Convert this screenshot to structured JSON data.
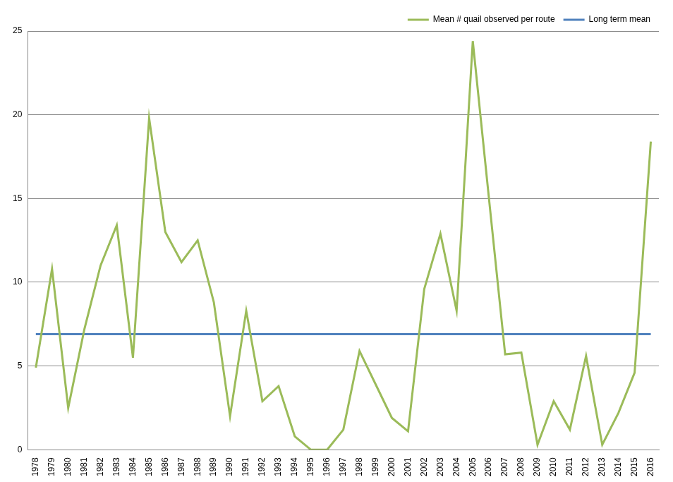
{
  "chart_data": {
    "type": "line",
    "categories": [
      "1978",
      "1979",
      "1980",
      "1981",
      "1982",
      "1983",
      "1984",
      "1985",
      "1986",
      "1987",
      "1988",
      "1989",
      "1990",
      "1991",
      "1992",
      "1993",
      "1994",
      "1995",
      "1996",
      "1997",
      "1998",
      "1999",
      "2000",
      "2001",
      "2002",
      "2003",
      "2004",
      "2005",
      "2006",
      "2007",
      "2008",
      "2009",
      "2010",
      "2011",
      "2012",
      "2013",
      "2014",
      "2015",
      "2016"
    ],
    "series": [
      {
        "name": "Mean # quail observed per route",
        "color": "#9bbb59",
        "values": [
          4.9,
          10.8,
          2.5,
          7.2,
          11.0,
          13.4,
          5.5,
          19.8,
          13.0,
          11.2,
          12.5,
          8.8,
          2.0,
          8.3,
          2.9,
          3.8,
          0.8,
          0,
          0,
          1.2,
          5.9,
          3.9,
          1.9,
          1.1,
          9.6,
          12.9,
          8.3,
          24.4,
          15.0,
          5.7,
          5.8,
          0.3,
          2.9,
          1.2,
          5.6,
          0.3,
          2.2,
          4.6,
          18.4
        ]
      },
      {
        "name": "Long term mean",
        "color": "#4f81bd",
        "values": [
          6.9,
          6.9,
          6.9,
          6.9,
          6.9,
          6.9,
          6.9,
          6.9,
          6.9,
          6.9,
          6.9,
          6.9,
          6.9,
          6.9,
          6.9,
          6.9,
          6.9,
          6.9,
          6.9,
          6.9,
          6.9,
          6.9,
          6.9,
          6.9,
          6.9,
          6.9,
          6.9,
          6.9,
          6.9,
          6.9,
          6.9,
          6.9,
          6.9,
          6.9,
          6.9,
          6.9,
          6.9,
          6.9,
          6.9
        ]
      }
    ],
    "ylim": [
      0,
      25
    ],
    "yticks": [
      0,
      5,
      10,
      15,
      20,
      25
    ],
    "grid": true,
    "legend": "top-right"
  }
}
